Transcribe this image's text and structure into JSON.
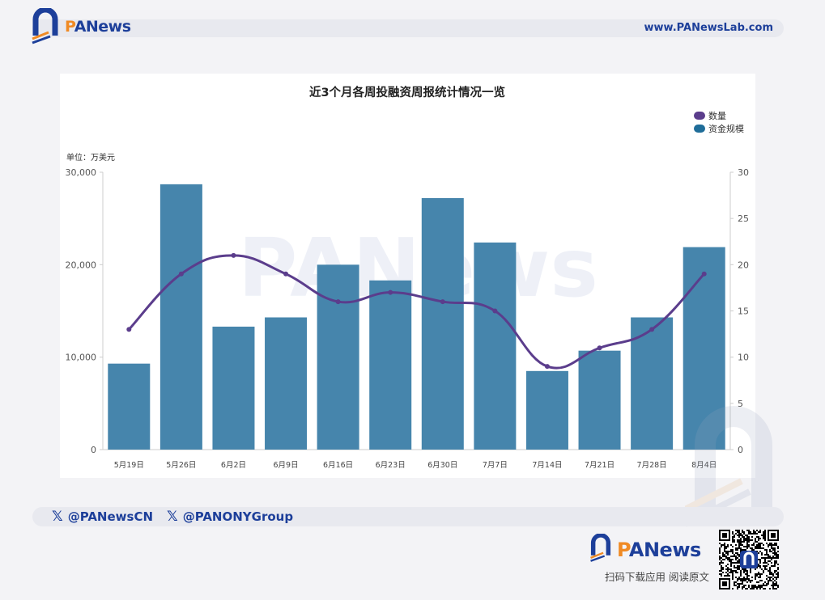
{
  "header": {
    "brand": "PANews",
    "brand_p": "P",
    "brand_rest": "ANews",
    "site_url": "www.PANewsLab.com"
  },
  "chart_data": {
    "type": "bar",
    "title": "近3个月各周投融资周报统计情况一览",
    "unit_label": "单位：万美元",
    "categories": [
      "5月19日",
      "5月26日",
      "6月2日",
      "6月9日",
      "6月16日",
      "6月23日",
      "6月30日",
      "7月7日",
      "7月14日",
      "7月21日",
      "7月28日",
      "8月4日"
    ],
    "series": [
      {
        "name": "资金规模",
        "type": "bar",
        "axis": "left",
        "color": "#4685ac",
        "values": [
          9300,
          28700,
          13300,
          14300,
          20000,
          18300,
          27200,
          22400,
          8500,
          10700,
          14300,
          21900
        ]
      },
      {
        "name": "数量",
        "type": "line",
        "axis": "right",
        "color": "#5b3d8c",
        "values": [
          13,
          19,
          21,
          19,
          16,
          17,
          16,
          15,
          9,
          11,
          13,
          19
        ]
      }
    ],
    "left_axis": {
      "range": [
        0,
        30000
      ],
      "ticks": [
        "0",
        "10,000",
        "20,000",
        "30,000"
      ],
      "tick_values": [
        0,
        10000,
        20000,
        30000
      ]
    },
    "right_axis": {
      "range": [
        0,
        30
      ],
      "ticks": [
        "0",
        "5",
        "10",
        "15",
        "20",
        "25",
        "30"
      ],
      "tick_values": [
        0,
        5,
        10,
        15,
        20,
        25,
        30
      ]
    },
    "legend": {
      "placement": "top-right",
      "items": [
        {
          "label": "数量",
          "color": "#5b3d8c"
        },
        {
          "label": "资金规模",
          "color": "#1f6d99"
        }
      ]
    },
    "watermark": "PANews",
    "grid": false
  },
  "footer": {
    "social_1": "@PANewsCN",
    "social_2": "@PANONYGroup",
    "x_glyph": "𝕏",
    "brand_p": "P",
    "brand_rest": "ANews",
    "cta": "扫码下载应用  阅读原文"
  },
  "colors": {
    "brand_blue": "#1d3f9a",
    "brand_orange": "#f08a24",
    "bar": "#4685ac",
    "line": "#5b3d8c"
  }
}
